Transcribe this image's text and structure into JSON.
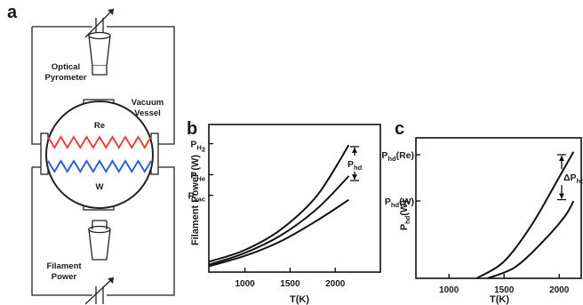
{
  "diagram": {
    "panel_letter": "a",
    "labels": {
      "optical_pyrometer_1": "Optical",
      "optical_pyrometer_2": "Pyrometer",
      "vacuum_vessel_1": "Vacuum",
      "vacuum_vessel_2": "Vessel",
      "re": "Re",
      "w": "W",
      "filament_power_1": "Filament",
      "filament_power_2": "Power"
    },
    "colors": {
      "re_filament": "#e8413a",
      "w_filament": "#2b5fd6"
    },
    "icons": [
      "variable-resistor-icon",
      "pyrometer-icon",
      "variable-resistor-icon"
    ]
  },
  "chart_data": [
    {
      "type": "line",
      "panel_letter": "b",
      "xlabel": "T(K)",
      "ylabel": "Filament Power (W)",
      "xticks": [
        1000,
        1500,
        2000
      ],
      "xlim": [
        600,
        2500
      ],
      "ylim": [
        0,
        1
      ],
      "series": [
        {
          "name": "P_H2",
          "x": [
            600,
            1000,
            1400,
            1800,
            2150
          ],
          "y": [
            0.07,
            0.15,
            0.29,
            0.52,
            0.86
          ]
        },
        {
          "name": "P_He",
          "x": [
            600,
            1000,
            1400,
            1800,
            2150
          ],
          "y": [
            0.05,
            0.13,
            0.25,
            0.43,
            0.65
          ]
        },
        {
          "name": "P_vac",
          "x": [
            600,
            1000,
            1400,
            1800,
            2150
          ],
          "y": [
            0.04,
            0.11,
            0.21,
            0.35,
            0.49
          ]
        }
      ],
      "ytick_labels": [
        {
          "main": "P",
          "sub": "H",
          "sub2": "2",
          "y": 0.87
        },
        {
          "main": "P",
          "sub": "He",
          "y": 0.66
        },
        {
          "main": "P",
          "sub": "vac",
          "y": 0.52
        }
      ],
      "annotation": {
        "main": "P",
        "sub": "hd",
        "y_top": 0.85,
        "y_bottom": 0.62
      }
    },
    {
      "type": "line",
      "panel_letter": "c",
      "xlabel": "T(K)",
      "ylabel": "P_hd(W)",
      "ylabel_main": "P",
      "ylabel_sub": "hd",
      "ylabel_suffix": "(W)",
      "xticks": [
        1000,
        1500,
        2000
      ],
      "xlim": [
        700,
        2200
      ],
      "ylim": [
        0,
        1
      ],
      "series": [
        {
          "name": "P_hd(Re)",
          "x": [
            1250,
            1500,
            1750,
            2000,
            2130
          ],
          "y": [
            0.0,
            0.12,
            0.38,
            0.72,
            0.9
          ]
        },
        {
          "name": "P_hd(W)",
          "x": [
            1350,
            1600,
            1850,
            2050,
            2130
          ],
          "y": [
            0.0,
            0.08,
            0.26,
            0.44,
            0.55
          ]
        }
      ],
      "ytick_labels": [
        {
          "main": "P",
          "sub": "hd",
          "suffix": "(Re)",
          "y": 0.88
        },
        {
          "main": "P",
          "sub": "hd",
          "suffix": "(W)",
          "y": 0.55
        }
      ],
      "annotation": {
        "prefix": "ΔP",
        "sub": "hd",
        "y_top": 0.88,
        "y_bottom": 0.56
      }
    }
  ]
}
